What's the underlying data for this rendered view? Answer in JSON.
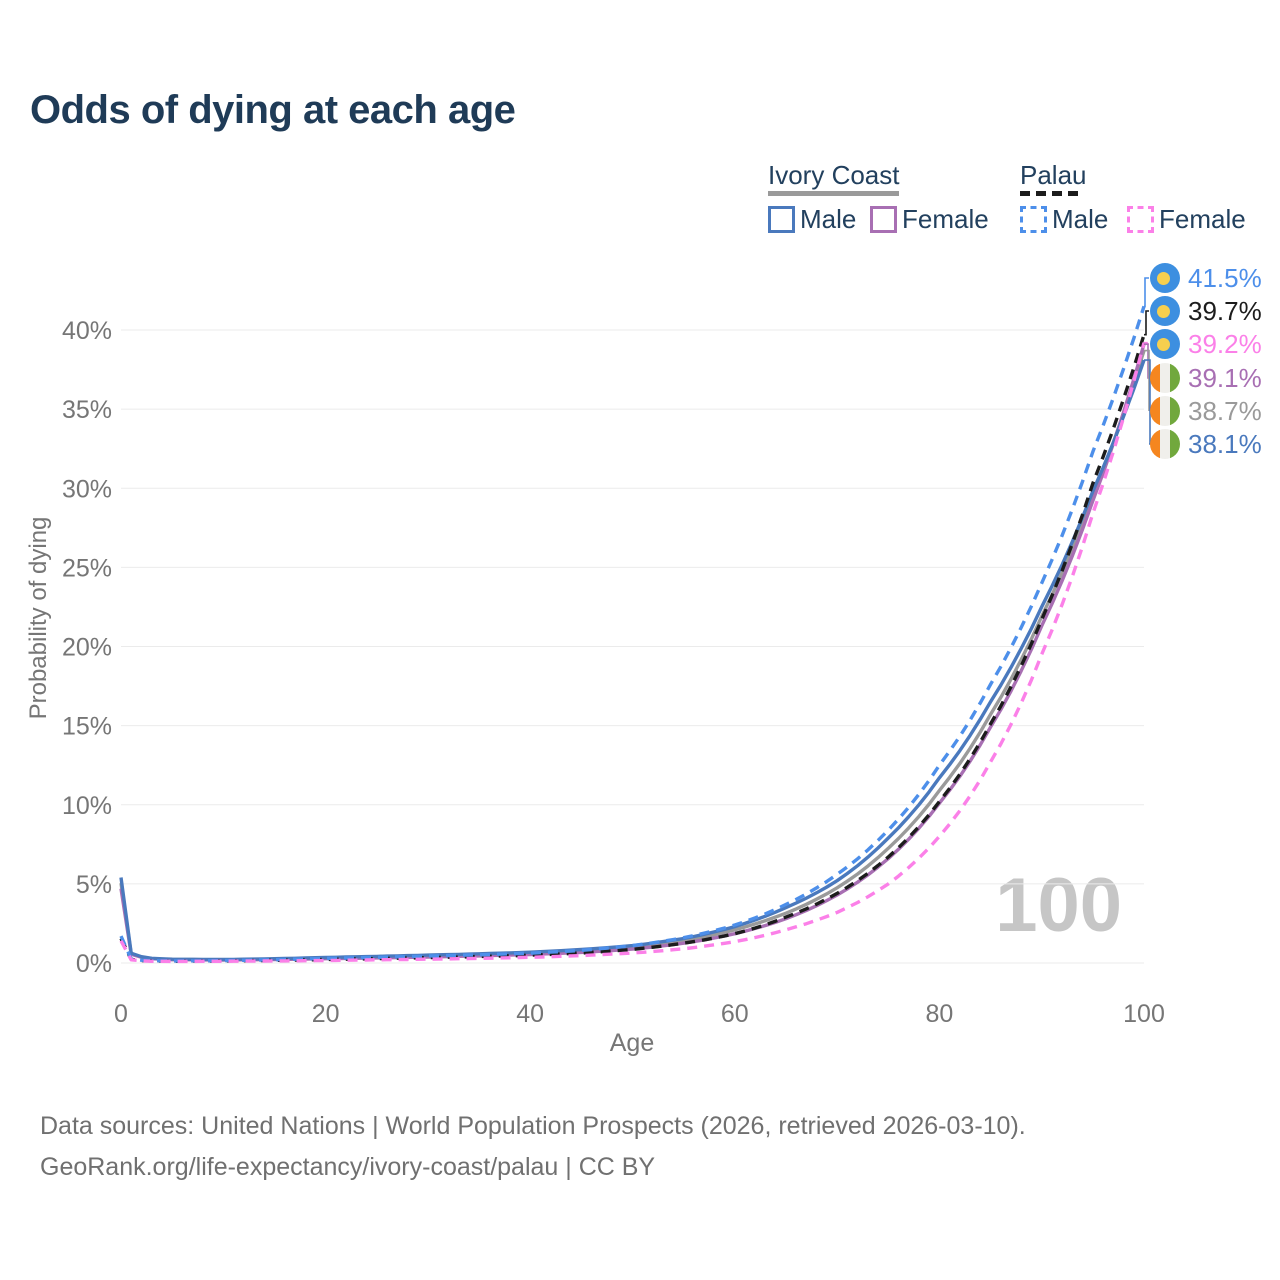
{
  "title": "Odds of dying at each age",
  "legend": {
    "groups": [
      {
        "name": "Ivory Coast",
        "line_style": "solid",
        "line_color": "#9a9a9a",
        "items": [
          {
            "label": "Male",
            "color": "#4a79bd",
            "dashed": false
          },
          {
            "label": "Female",
            "color": "#a86fb3",
            "dashed": false
          }
        ]
      },
      {
        "name": "Palau",
        "line_style": "dashed",
        "line_color": "#1c1c1c",
        "items": [
          {
            "label": "Male",
            "color": "#4d8fea",
            "dashed": true
          },
          {
            "label": "Female",
            "color": "#fb80e8",
            "dashed": true
          }
        ]
      }
    ]
  },
  "chart_data": {
    "type": "line",
    "title": "Odds of dying at each age",
    "xlabel": "Age",
    "ylabel": "Probability of dying",
    "xlim": [
      0,
      100
    ],
    "ylim": [
      0,
      44
    ],
    "grid": true,
    "legend_position": "top-right",
    "x_ticks": [
      {
        "v": 0,
        "label": "0"
      },
      {
        "v": 20,
        "label": "20"
      },
      {
        "v": 40,
        "label": "40"
      },
      {
        "v": 60,
        "label": "60"
      },
      {
        "v": 80,
        "label": "80"
      },
      {
        "v": 100,
        "label": "100"
      }
    ],
    "y_ticks": [
      {
        "v": 0,
        "label": "0%"
      },
      {
        "v": 5,
        "label": "5%"
      },
      {
        "v": 10,
        "label": "10%"
      },
      {
        "v": 15,
        "label": "15%"
      },
      {
        "v": 20,
        "label": "20%"
      },
      {
        "v": 25,
        "label": "25%"
      },
      {
        "v": 30,
        "label": "30%"
      },
      {
        "v": 35,
        "label": "35%"
      },
      {
        "v": 40,
        "label": "40%"
      }
    ],
    "ages": [
      0,
      1,
      2,
      3,
      5,
      10,
      15,
      20,
      25,
      30,
      35,
      40,
      45,
      50,
      55,
      60,
      65,
      70,
      75,
      80,
      85,
      90,
      95,
      100
    ],
    "series": [
      {
        "name": "Ivory Coast Both sexes",
        "color": "#9a9a9a",
        "dashed": false,
        "values": [
          5.05,
          0.59,
          0.38,
          0.28,
          0.22,
          0.2,
          0.24,
          0.31,
          0.37,
          0.44,
          0.52,
          0.61,
          0.76,
          1.0,
          1.4,
          2.1,
          3.15,
          4.75,
          7.25,
          10.9,
          15.7,
          21.9,
          29.5,
          38.7
        ]
      },
      {
        "name": "Ivory Coast Female",
        "color": "#a86fb3",
        "dashed": false,
        "values": [
          4.7,
          0.55,
          0.36,
          0.27,
          0.21,
          0.19,
          0.22,
          0.27,
          0.32,
          0.38,
          0.45,
          0.54,
          0.67,
          0.88,
          1.25,
          1.85,
          2.8,
          4.3,
          6.6,
          10.1,
          14.9,
          21.3,
          29.2,
          39.1
        ]
      },
      {
        "name": "Ivory Coast Male",
        "color": "#4a79bd",
        "dashed": false,
        "values": [
          5.4,
          0.62,
          0.4,
          0.3,
          0.24,
          0.22,
          0.27,
          0.35,
          0.42,
          0.5,
          0.58,
          0.68,
          0.85,
          1.1,
          1.55,
          2.3,
          3.5,
          5.2,
          7.9,
          11.7,
          16.5,
          22.5,
          29.8,
          38.1
        ]
      },
      {
        "name": "Palau Both sexes",
        "color": "#1c1c1c",
        "dashed": true,
        "values": [
          1.55,
          0.22,
          0.16,
          0.13,
          0.11,
          0.13,
          0.17,
          0.22,
          0.28,
          0.34,
          0.41,
          0.49,
          0.63,
          0.86,
          1.25,
          1.85,
          2.9,
          4.4,
          6.7,
          10.2,
          15.1,
          21.7,
          30.3,
          39.7
        ]
      },
      {
        "name": "Palau Male",
        "color": "#4d8fea",
        "dashed": true,
        "values": [
          1.7,
          0.25,
          0.18,
          0.15,
          0.13,
          0.15,
          0.21,
          0.29,
          0.36,
          0.44,
          0.52,
          0.62,
          0.8,
          1.1,
          1.6,
          2.4,
          3.7,
          5.6,
          8.4,
          12.5,
          17.6,
          24.0,
          32.3,
          41.5
        ]
      },
      {
        "name": "Palau Female",
        "color": "#fb80e8",
        "dashed": true,
        "values": [
          1.4,
          0.2,
          0.14,
          0.11,
          0.1,
          0.11,
          0.13,
          0.16,
          0.2,
          0.24,
          0.29,
          0.36,
          0.47,
          0.63,
          0.9,
          1.35,
          2.1,
          3.2,
          5.0,
          8.0,
          12.7,
          19.5,
          28.4,
          39.2
        ]
      }
    ]
  },
  "end_labels": [
    {
      "text": "41.5%",
      "color": "#4d8fea",
      "flag": "palau",
      "series": "Palau Male"
    },
    {
      "text": "39.7%",
      "color": "#1c1c1c",
      "flag": "palau",
      "series": "Palau Both sexes"
    },
    {
      "text": "39.2%",
      "color": "#fb80e8",
      "flag": "palau",
      "series": "Palau Female"
    },
    {
      "text": "39.1%",
      "color": "#a86fb3",
      "flag": "ivory-coast",
      "series": "Ivory Coast Female"
    },
    {
      "text": "38.7%",
      "color": "#9a9a9a",
      "flag": "ivory-coast",
      "series": "Ivory Coast Both sexes"
    },
    {
      "text": "38.1%",
      "color": "#4a79bd",
      "flag": "ivory-coast",
      "series": "Ivory Coast Male"
    }
  ],
  "watermark": "100",
  "footer": {
    "line1": "Data sources: United Nations | World Population Prospects (2026, retrieved 2026-03-10).",
    "line2": "GeoRank.org/life-expectancy/ivory-coast/palau | CC BY"
  },
  "flag_colors": {
    "palau_bg": "#3d8fe0",
    "palau_moon": "#f6cf4e",
    "ic_orange": "#f5861f",
    "ic_white": "#f0efeb",
    "ic_green": "#71a83d"
  }
}
